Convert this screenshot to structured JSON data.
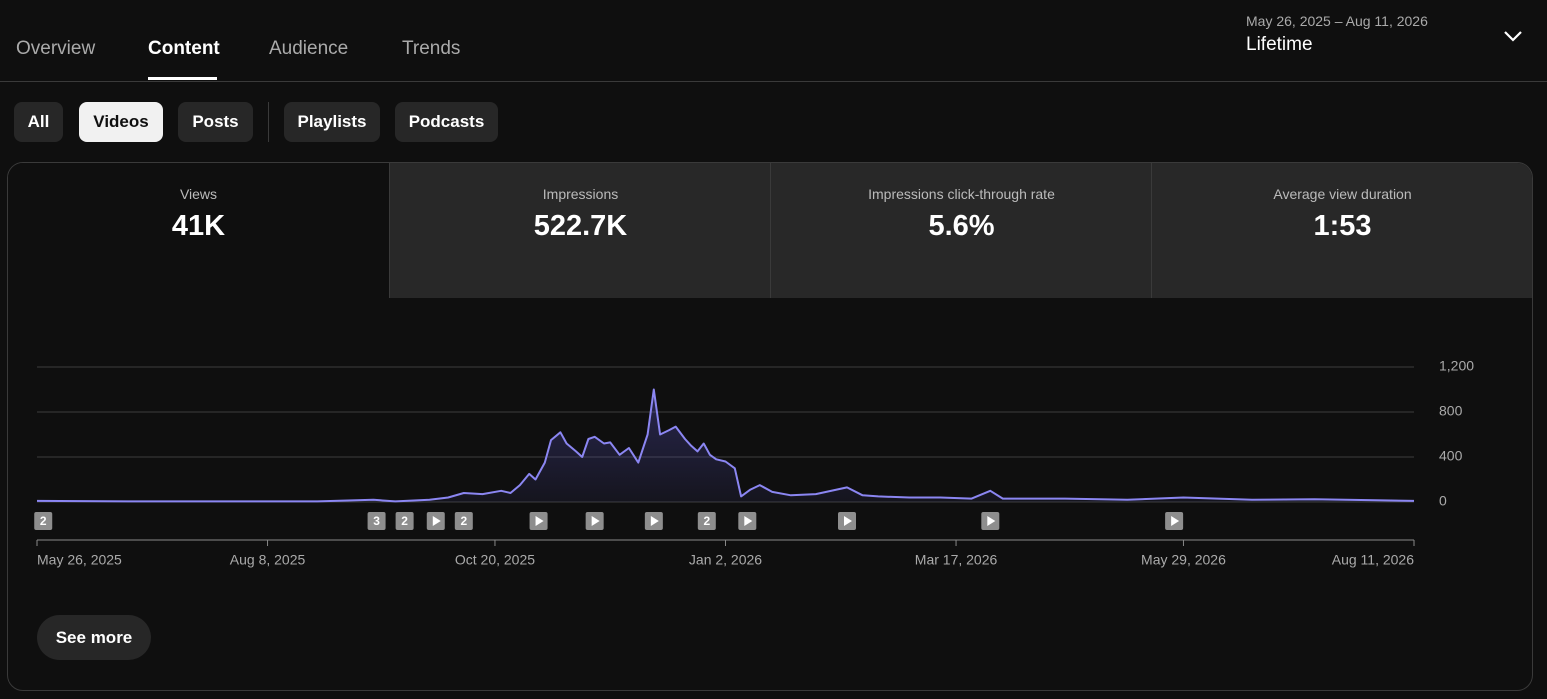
{
  "tabs": [
    "Overview",
    "Content",
    "Audience",
    "Trends"
  ],
  "date_range": {
    "range": "May 26, 2025 – Aug 11, 2026",
    "label": "Lifetime"
  },
  "filters": [
    "All",
    "Videos",
    "Posts",
    "Playlists",
    "Podcasts"
  ],
  "metrics": [
    {
      "label": "Views",
      "value": "41K"
    },
    {
      "label": "Impressions",
      "value": "522.7K"
    },
    {
      "label": "Impressions click-through rate",
      "value": "5.6%"
    },
    {
      "label": "Average view duration",
      "value": "1:53"
    }
  ],
  "chart_data": {
    "type": "line",
    "color": "#8b86f2",
    "grid": true,
    "x": [
      "2025-05-26",
      "2025-06-25",
      "2025-07-25",
      "2025-08-24",
      "2025-09-11",
      "2025-09-18",
      "2025-09-29",
      "2025-10-05",
      "2025-10-10",
      "2025-10-16",
      "2025-10-22",
      "2025-10-25",
      "2025-10-28",
      "2025-10-31",
      "2025-11-02",
      "2025-11-05",
      "2025-11-07",
      "2025-11-10",
      "2025-11-12",
      "2025-11-15",
      "2025-11-17",
      "2025-11-19",
      "2025-11-21",
      "2025-11-24",
      "2025-11-26",
      "2025-11-29",
      "2025-12-02",
      "2025-12-05",
      "2025-12-08",
      "2025-12-10",
      "2025-12-12",
      "2025-12-15",
      "2025-12-17",
      "2025-12-20",
      "2025-12-22",
      "2025-12-24",
      "2025-12-26",
      "2025-12-28",
      "2025-12-30",
      "2026-01-02",
      "2026-01-05",
      "2026-01-07",
      "2026-01-10",
      "2026-01-13",
      "2026-01-17",
      "2026-01-23",
      "2026-01-31",
      "2026-02-10",
      "2026-02-15",
      "2026-02-20",
      "2026-03-02",
      "2026-03-12",
      "2026-03-22",
      "2026-03-28",
      "2026-04-01",
      "2026-04-21",
      "2026-05-11",
      "2026-05-29",
      "2026-06-20",
      "2026-07-10",
      "2026-07-30",
      "2026-08-11"
    ],
    "values": [
      10,
      5,
      5,
      5,
      20,
      5,
      20,
      40,
      80,
      70,
      100,
      80,
      150,
      250,
      200,
      350,
      550,
      620,
      520,
      450,
      400,
      560,
      580,
      520,
      530,
      420,
      480,
      350,
      600,
      1000,
      600,
      640,
      670,
      560,
      500,
      450,
      520,
      420,
      380,
      360,
      300,
      50,
      110,
      150,
      90,
      60,
      70,
      130,
      60,
      50,
      40,
      40,
      30,
      100,
      30,
      30,
      20,
      40,
      20,
      25,
      15,
      10
    ],
    "xlim": [
      "2025-05-26",
      "2026-08-11"
    ],
    "xticks": [
      {
        "value": "2025-05-26",
        "label": "May 26, 2025"
      },
      {
        "value": "2025-08-08",
        "label": "Aug 8, 2025"
      },
      {
        "value": "2025-10-20",
        "label": "Oct 20, 2025"
      },
      {
        "value": "2026-01-02",
        "label": "Jan 2, 2026"
      },
      {
        "value": "2026-03-17",
        "label": "Mar 17, 2026"
      },
      {
        "value": "2026-05-29",
        "label": "May 29, 2026"
      },
      {
        "value": "2026-08-11",
        "label": "Aug 11, 2026"
      }
    ],
    "ylim": [
      0,
      1200
    ],
    "yticks": [
      0,
      400,
      800,
      {
        "value": 1200,
        "label": "1,200"
      }
    ],
    "markers": [
      {
        "x": "2025-05-28",
        "label": "2"
      },
      {
        "x": "2025-09-12",
        "label": "3"
      },
      {
        "x": "2025-09-21",
        "label": "2"
      },
      {
        "x": "2025-10-01"
      },
      {
        "x": "2025-10-10",
        "label": "2"
      },
      {
        "x": "2025-11-03"
      },
      {
        "x": "2025-11-21"
      },
      {
        "x": "2025-12-10"
      },
      {
        "x": "2025-12-27",
        "label": "2"
      },
      {
        "x": "2026-01-09"
      },
      {
        "x": "2026-02-10"
      },
      {
        "x": "2026-03-28"
      },
      {
        "x": "2026-05-26"
      }
    ]
  },
  "button": "See more"
}
